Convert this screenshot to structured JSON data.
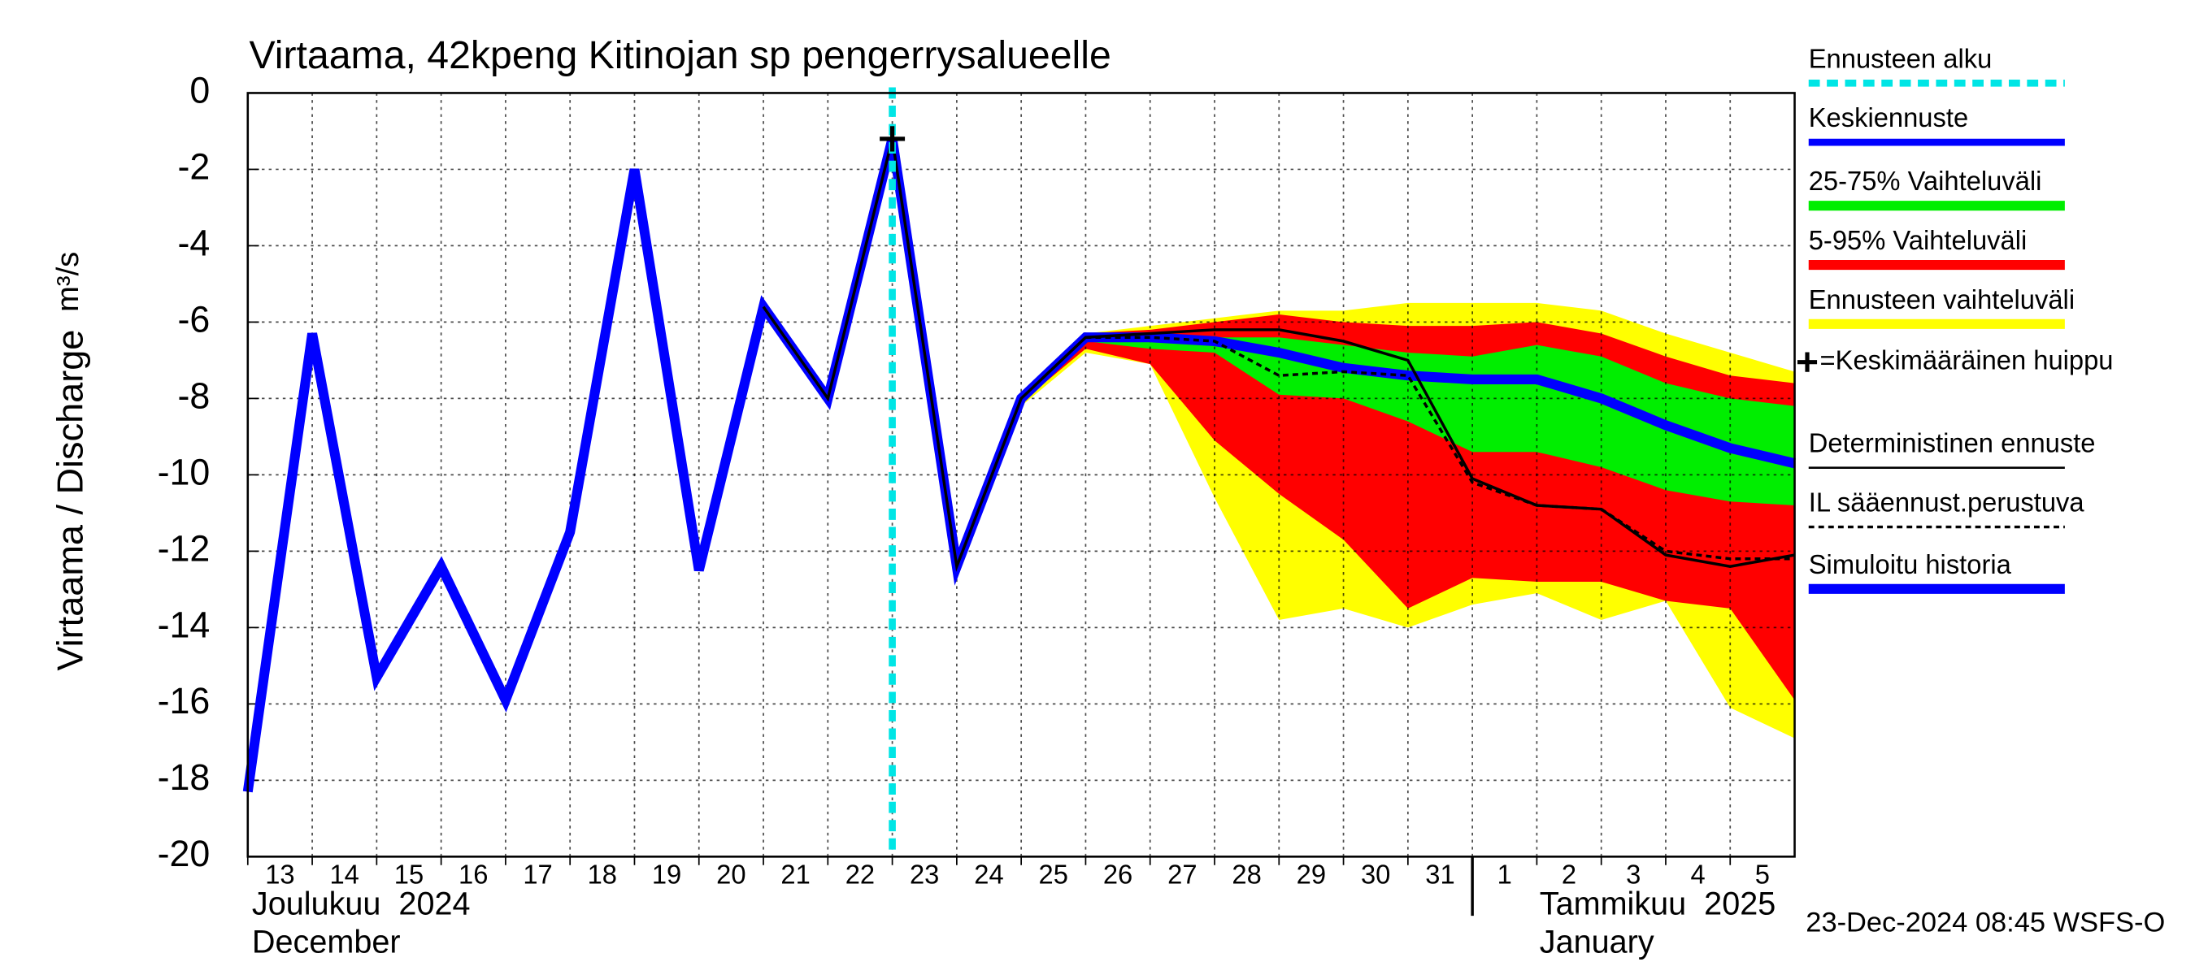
{
  "chart_data": {
    "type": "line",
    "title": "Virtaama, 42kpeng Kitinojan sp pengerrysalueelle",
    "ylabel": "Virtaama / Discharge",
    "yunit": "m³/s",
    "months": [
      {
        "date": "2024-12-13",
        "fi": "Joulukuu  2024",
        "en": "December"
      },
      {
        "date": "2025-01-01",
        "fi": "Tammikuu  2025",
        "en": "January"
      }
    ],
    "footer": "23-Dec-2024 08:45 WSFS-O",
    "ylim": [
      -20,
      0
    ],
    "yticks": [
      -20,
      -18,
      -16,
      -14,
      -12,
      -10,
      -8,
      -6,
      -4,
      -2,
      0
    ],
    "xlim": [
      "2024-12-13",
      "2025-01-06"
    ],
    "grid": true,
    "x": [
      "2024-12-13",
      "2024-12-14",
      "2024-12-15",
      "2024-12-16",
      "2024-12-17",
      "2024-12-18",
      "2024-12-19",
      "2024-12-20",
      "2024-12-21",
      "2024-12-22",
      "2024-12-23",
      "2024-12-24",
      "2024-12-25",
      "2024-12-26",
      "2024-12-27",
      "2024-12-28",
      "2024-12-29",
      "2024-12-30",
      "2024-12-31",
      "2025-01-01",
      "2025-01-02",
      "2025-01-03",
      "2025-01-04",
      "2025-01-05",
      "2025-01-06"
    ],
    "xticks": [
      {
        "value": "2024-12-13",
        "label": "13"
      },
      {
        "value": "2024-12-14",
        "label": "14"
      },
      {
        "value": "2024-12-15",
        "label": "15"
      },
      {
        "value": "2024-12-16",
        "label": "16"
      },
      {
        "value": "2024-12-17",
        "label": "17"
      },
      {
        "value": "2024-12-18",
        "label": "18"
      },
      {
        "value": "2024-12-19",
        "label": "19"
      },
      {
        "value": "2024-12-20",
        "label": "20"
      },
      {
        "value": "2024-12-21",
        "label": "21"
      },
      {
        "value": "2024-12-22",
        "label": "22"
      },
      {
        "value": "2024-12-23",
        "label": "23"
      },
      {
        "value": "2024-12-24",
        "label": "24"
      },
      {
        "value": "2024-12-25",
        "label": "25"
      },
      {
        "value": "2024-12-26",
        "label": "26"
      },
      {
        "value": "2024-12-27",
        "label": "27"
      },
      {
        "value": "2024-12-28",
        "label": "28"
      },
      {
        "value": "2024-12-29",
        "label": "29"
      },
      {
        "value": "2024-12-30",
        "label": "30"
      },
      {
        "value": "2024-12-31",
        "label": "31"
      },
      {
        "value": "2025-01-01",
        "label": "1"
      },
      {
        "value": "2025-01-02",
        "label": "2"
      },
      {
        "value": "2025-01-03",
        "label": "3"
      },
      {
        "value": "2025-01-04",
        "label": "4"
      },
      {
        "value": "2025-01-05",
        "label": "5"
      }
    ],
    "forecast_start": {
      "name": "Ennusteen alku",
      "color": "#00e5e5",
      "date": "2024-12-23"
    },
    "peak": {
      "name": "=Keskimääräinen huippu",
      "date": "2024-12-23",
      "value": -1.2
    },
    "bands": [
      {
        "name": "Ennusteen vaihteluväli",
        "color": "#ffff00",
        "high": [
          null,
          null,
          null,
          null,
          null,
          null,
          null,
          null,
          null,
          null,
          null,
          null,
          -8.0,
          -6.3,
          -6.1,
          -5.9,
          -5.7,
          -5.7,
          -5.5,
          -5.5,
          -5.5,
          -5.7,
          -6.3,
          -6.8,
          -7.3
        ],
        "low": [
          null,
          null,
          null,
          null,
          null,
          null,
          null,
          null,
          null,
          null,
          null,
          null,
          -8.2,
          -6.8,
          -7.1,
          -10.6,
          -13.8,
          -13.5,
          -14.0,
          -13.4,
          -13.1,
          -13.8,
          -13.3,
          -16.1,
          -16.9
        ]
      },
      {
        "name": "5-95% Vaihteluväli",
        "color": "#ff0000",
        "high": [
          null,
          null,
          null,
          null,
          null,
          null,
          null,
          null,
          null,
          null,
          null,
          null,
          -8.0,
          -6.3,
          -6.2,
          -6.0,
          -5.8,
          -6.0,
          -6.1,
          -6.1,
          -6.0,
          -6.3,
          -6.9,
          -7.4,
          -7.6
        ],
        "low": [
          null,
          null,
          null,
          null,
          null,
          null,
          null,
          null,
          null,
          null,
          null,
          null,
          -8.1,
          -6.7,
          -7.1,
          -9.1,
          -10.5,
          -11.7,
          -13.5,
          -12.7,
          -12.8,
          -12.8,
          -13.3,
          -13.5,
          -15.9
        ]
      },
      {
        "name": "25-75% Vaihteluväli",
        "color": "#00ee00",
        "high": [
          null,
          null,
          null,
          null,
          null,
          null,
          null,
          null,
          null,
          null,
          null,
          null,
          -8.0,
          -6.4,
          -6.3,
          -6.4,
          -6.4,
          -6.6,
          -6.8,
          -6.9,
          -6.6,
          -6.9,
          -7.6,
          -8.0,
          -8.2
        ],
        "low": [
          null,
          null,
          null,
          null,
          null,
          null,
          null,
          null,
          null,
          null,
          null,
          null,
          -8.0,
          -6.5,
          -6.7,
          -6.8,
          -7.9,
          -8.0,
          -8.6,
          -9.4,
          -9.4,
          -9.8,
          -10.4,
          -10.7,
          -10.8
        ]
      }
    ],
    "series": [
      {
        "name": "Simuloitu historia",
        "color": "#0000ff",
        "width": 7,
        "dash": false,
        "values": [
          -18.3,
          -6.3,
          -15.3,
          -12.4,
          -15.9,
          -11.5,
          -2.0,
          -12.5,
          -5.6,
          -8.0,
          -1.2,
          null,
          null,
          null,
          null,
          null,
          null,
          null,
          null,
          null,
          null,
          null,
          null,
          null,
          null
        ]
      },
      {
        "name": "Keskiennuste",
        "color": "#0000ff",
        "width": 7,
        "dash": false,
        "values": [
          null,
          null,
          null,
          null,
          null,
          null,
          null,
          null,
          null,
          null,
          -1.2,
          -12.4,
          -8.0,
          -6.4,
          -6.4,
          -6.5,
          -6.8,
          -7.2,
          -7.4,
          -7.5,
          -7.5,
          -8.0,
          -8.7,
          -9.3,
          -9.7
        ]
      },
      {
        "name": "Deterministinen ennuste",
        "color": "#000000",
        "width": 2,
        "dash": false,
        "values": [
          null,
          null,
          null,
          null,
          null,
          null,
          null,
          null,
          -5.6,
          -8.0,
          -1.2,
          -12.4,
          -8.0,
          -6.4,
          -6.3,
          -6.2,
          -6.2,
          -6.5,
          -7.0,
          -10.1,
          -10.8,
          -10.9,
          -12.1,
          -12.4,
          -12.1
        ]
      },
      {
        "name": "IL sääennust.perustuva",
        "color": "#000000",
        "width": 2,
        "dash": true,
        "values": [
          null,
          null,
          null,
          null,
          null,
          null,
          null,
          null,
          null,
          null,
          null,
          null,
          null,
          -6.4,
          -6.4,
          -6.5,
          -7.4,
          -7.3,
          -7.4,
          -10.2,
          -10.8,
          -10.9,
          -12.0,
          -12.2,
          -12.2
        ]
      }
    ]
  }
}
